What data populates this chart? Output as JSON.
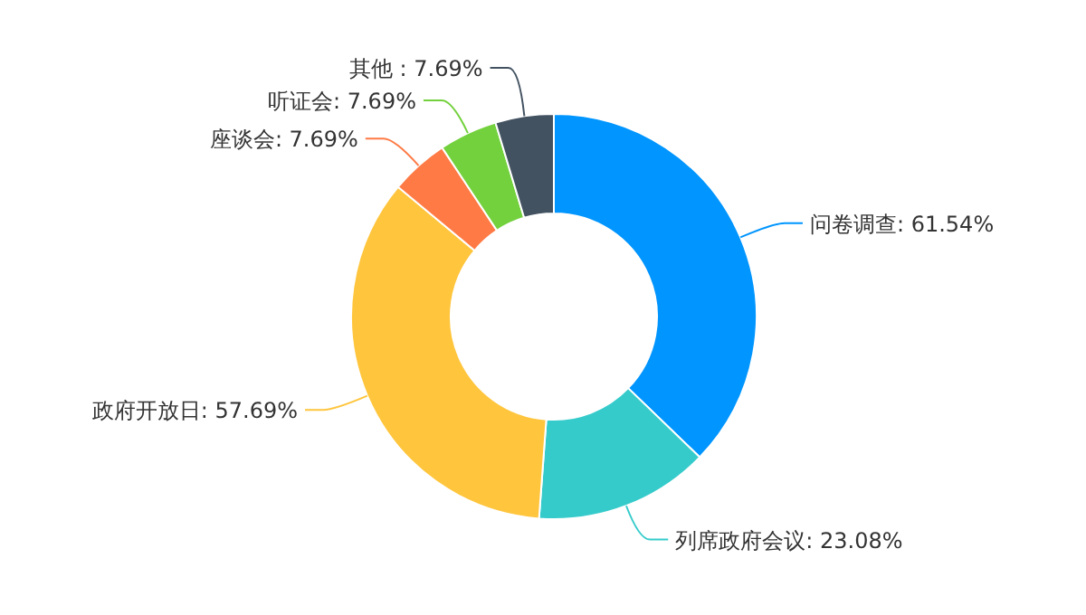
{
  "chart_data": {
    "type": "donut",
    "categories": [
      "问卷调查",
      "列席政府会议",
      "政府开放日",
      "座谈会",
      "听证会",
      "其他 "
    ],
    "values": [
      61.54,
      23.08,
      57.69,
      7.69,
      7.69,
      7.69
    ],
    "value_labels": [
      "61.54%",
      "23.08%",
      "57.69%",
      "7.69%",
      "7.69%",
      "7.69%"
    ],
    "colors": [
      "#0095ff",
      "#36cbcb",
      "#ffc53d",
      "#ff7a45",
      "#73d13d",
      "#435261"
    ]
  }
}
